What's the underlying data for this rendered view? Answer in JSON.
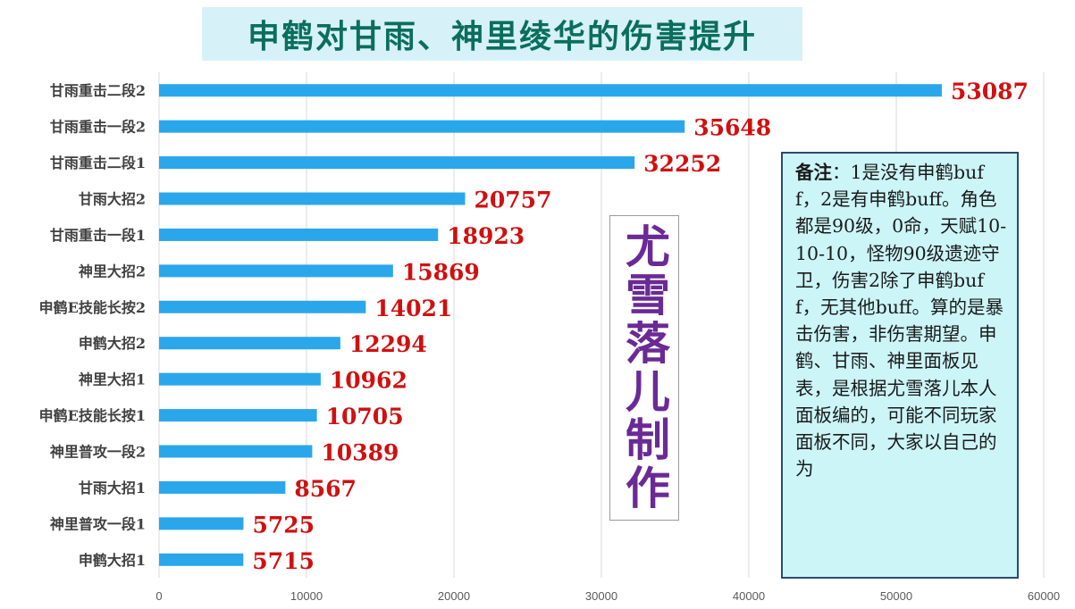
{
  "chart_data": {
    "type": "bar",
    "orientation": "horizontal",
    "title": "申鹤对甘雨、神里绫华的伤害提升",
    "categories": [
      "甘雨重击二段2",
      "甘雨重击一段2",
      "甘雨重击二段1",
      "甘雨大招2",
      "甘雨重击一段1",
      "神里大招2",
      "申鹤E技能长按2",
      "申鹤大招2",
      "神里大招1",
      "申鹤E技能长按1",
      "神里普攻一段2",
      "甘雨大招1",
      "神里普攻一段1",
      "申鹤大招1"
    ],
    "values": [
      53087,
      35648,
      32252,
      20757,
      18923,
      15869,
      14021,
      12294,
      10962,
      10705,
      10389,
      8567,
      5725,
      5715
    ],
    "xlim": [
      0,
      60000
    ],
    "x_ticks": [
      "0",
      "10000",
      "20000",
      "30000",
      "40000",
      "50000",
      "60000"
    ],
    "grid": "vertical",
    "bar_color": "#2aa7ea",
    "value_label_color": "#d01010"
  },
  "watermark": "尤雪落儿制作",
  "note": {
    "label": "备注",
    "text": "：1是没有申鹤buff，2是有申鹤buff。角色都是90级，0命，天赋10-10-10，怪物90级遗迹守卫，伤害2除了申鹤buff，无其他buff。算的是暴击伤害，非伤害期望。申鹤、甘雨、神里面板见表，是根据尤雪落儿本人面板编的，可能不同玩家面板不同，大家以自己的为"
  }
}
